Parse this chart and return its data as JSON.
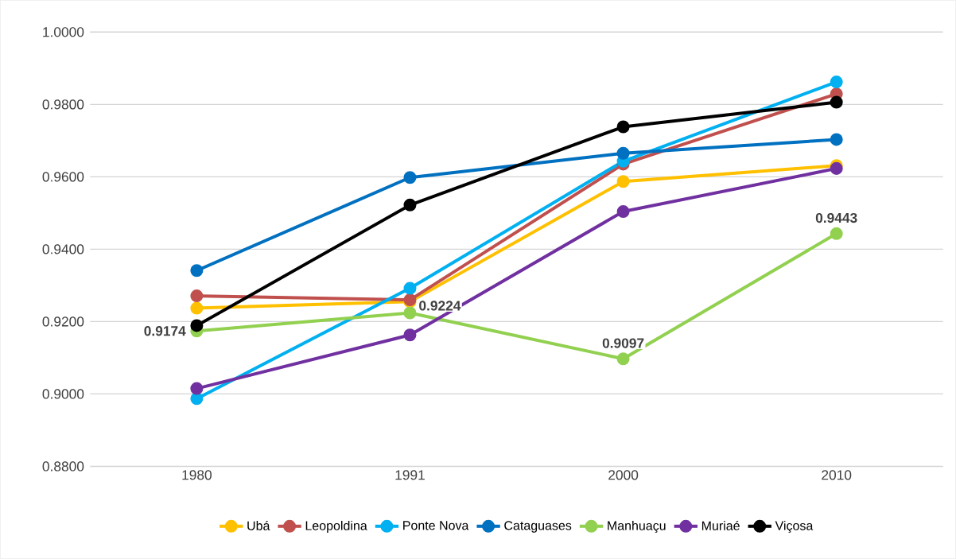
{
  "chart_data": {
    "type": "line",
    "categories": [
      "1980",
      "1991",
      "2000",
      "2010"
    ],
    "series": [
      {
        "name": "Ubá",
        "color": "#ffc000",
        "values": [
          0.9237,
          0.9255,
          0.9587,
          0.9631
        ]
      },
      {
        "name": "Leopoldina",
        "color": "#c0504d",
        "values": [
          0.9271,
          0.926,
          0.9635,
          0.9829
        ]
      },
      {
        "name": "Ponte Nova",
        "color": "#00b0f0",
        "values": [
          0.8987,
          0.9292,
          0.9643,
          0.9862
        ]
      },
      {
        "name": "Cataguases",
        "color": "#0070c0",
        "values": [
          0.9341,
          0.9598,
          0.9665,
          0.9703
        ]
      },
      {
        "name": "Manhuaçu",
        "color": "#92d050",
        "values": [
          0.9174,
          0.9224,
          0.9097,
          0.9443
        ],
        "value_labels": [
          "0.9174",
          "0.9224",
          "0.9097",
          "0.9443"
        ]
      },
      {
        "name": "Muriaé",
        "color": "#7030a0",
        "values": [
          0.9015,
          0.9163,
          0.9504,
          0.9623
        ]
      },
      {
        "name": "Viçosa",
        "color": "#000000",
        "values": [
          0.9189,
          0.9522,
          0.9738,
          0.9806
        ]
      }
    ],
    "ylim": [
      0.88,
      1.0
    ],
    "yticks": [
      {
        "value": 0.88,
        "label": "0.8800"
      },
      {
        "value": 0.9,
        "label": "0.9000"
      },
      {
        "value": 0.92,
        "label": "0.9200"
      },
      {
        "value": 0.94,
        "label": "0.9400"
      },
      {
        "value": 0.96,
        "label": "0.9600"
      },
      {
        "value": 0.98,
        "label": "0.9800"
      },
      {
        "value": 1.0,
        "label": "1.0000"
      }
    ],
    "grid": "y",
    "legend": "bottom",
    "marker": "circle",
    "line_style": "solid"
  }
}
